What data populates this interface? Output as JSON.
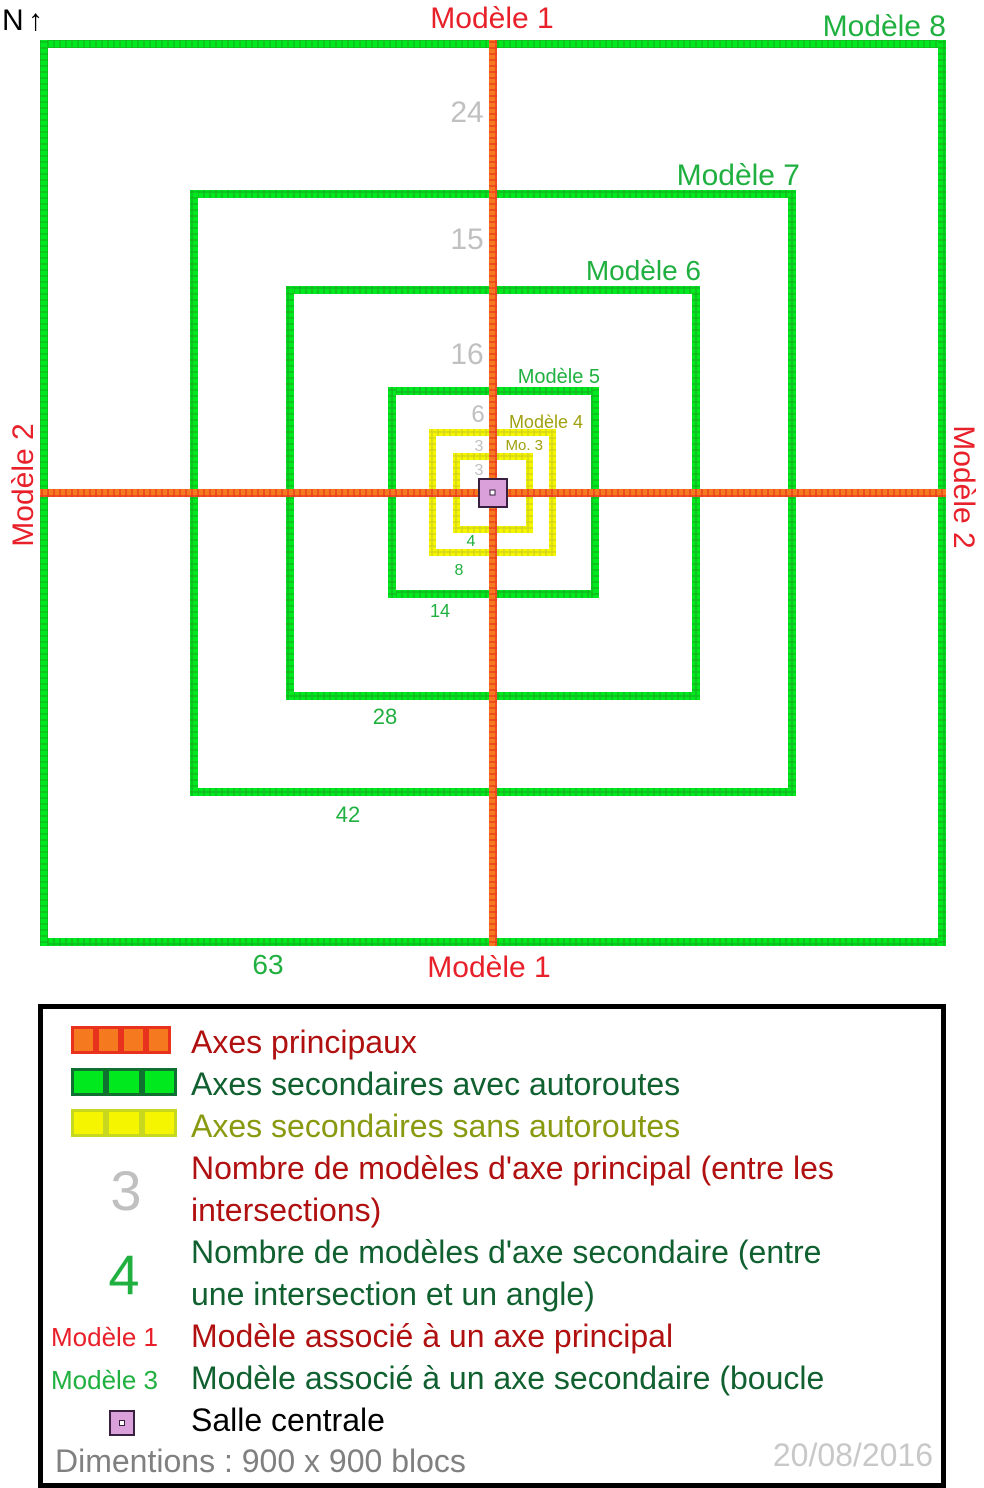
{
  "compass": {
    "label": "N",
    "arrow": "↑"
  },
  "colors": {
    "main_axis": "#f57a1f",
    "main_axis_border": "#e8321e",
    "highway": "#00e81e",
    "highway_border": "#18b020",
    "no_highway": "#f5f500",
    "no_highway_border": "#d8d820",
    "main_label": "#e8202a",
    "loop_label": "#1fb040",
    "model4_label": "#a0a010",
    "count_grey": "#c0c0c0",
    "count_green": "#20b040",
    "legend_red_text": "#b01010",
    "legend_green_text": "#106030",
    "legend_yellow_text": "#8a9a10",
    "center_room": "#d9a0d9"
  },
  "map": {
    "axis_labels": {
      "top": "Modèle 1",
      "bottom": "Modèle 1",
      "left": "Modèle 2",
      "right": "Modèle 2"
    },
    "loop_labels": {
      "m8": "Modèle 8",
      "m7": "Modèle 7",
      "m6": "Modèle 6",
      "m5": "Modèle 5",
      "m4": "Modèle 4",
      "m3": "Mo. 3"
    },
    "main_axis_counts": [
      "24",
      "15",
      "16",
      "6",
      "3",
      "3"
    ],
    "secondary_counts": [
      "63",
      "42",
      "28",
      "14",
      "8",
      "4"
    ]
  },
  "legend": {
    "main_axes": "Axes principaux",
    "secondary_with_highways": "Axes secondaires avec autoroutes",
    "secondary_without_highways": "Axes secondaires sans autoroutes",
    "main_count_symbol": "3",
    "main_count_line1": "Nombre de modèles d'axe principal (entre les",
    "main_count_line2": "intersections)",
    "secondary_count_symbol": "4",
    "secondary_count_line1": "Nombre de modèles d'axe secondaire (entre",
    "secondary_count_line2": "une intersection et un angle)",
    "main_model_symbol": "Modèle 1",
    "main_model_text": "Modèle associé à un axe principal",
    "secondary_model_symbol": "Modèle 3",
    "secondary_model_text": "Modèle associé à un axe secondaire (boucle",
    "center_room_text": "Salle centrale",
    "dimensions": "Dimentions : 900 x 900 blocs",
    "date": "20/08/2016"
  }
}
